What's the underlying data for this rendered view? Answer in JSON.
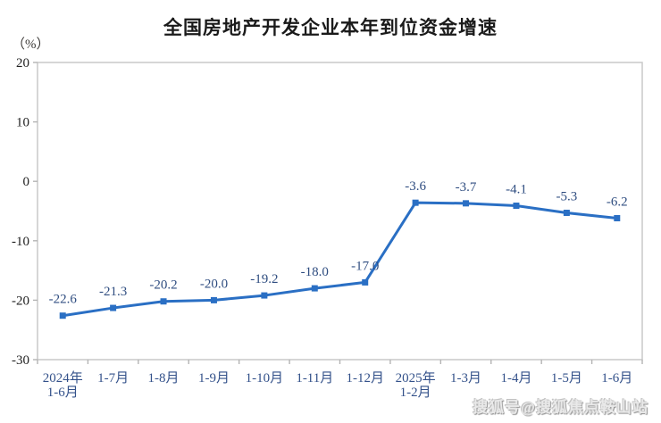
{
  "chart_data": {
    "type": "line",
    "title": "全国房地产开发企业本年到位资金增速",
    "ylabel": "（%）",
    "xlabel": "",
    "categories": [
      "2024年\n1-6月",
      "1-7月",
      "1-8月",
      "1-9月",
      "1-10月",
      "1-11月",
      "1-12月",
      "2025年\n1-2月",
      "1-3月",
      "1-4月",
      "1-5月",
      "1-6月"
    ],
    "values": [
      -22.6,
      -21.3,
      -20.2,
      -20.0,
      -19.2,
      -18.0,
      -17.0,
      -3.6,
      -3.7,
      -4.1,
      -5.3,
      -6.2
    ],
    "data_labels": [
      "-22.6",
      "-21.3",
      "-20.2",
      "-20.0",
      "-19.2",
      "-18.0",
      "-17.0",
      "-3.6",
      "-3.7",
      "-4.1",
      "-5.3",
      "-6.2"
    ],
    "ylim": [
      -30,
      20
    ],
    "yticks": [
      20,
      10,
      0,
      -10,
      -20,
      -30
    ],
    "grid": false,
    "legend": "none",
    "marker": "square",
    "colors": {
      "line": "#2a6fc4",
      "marker": "#2a6fc4",
      "frame": "#c8c8c8",
      "tick": "#b4b4b4",
      "ytick_label": "#1f1f1f",
      "xtick_label": "#33518a",
      "data_label": "#2f4d80",
      "title": "#1a1a1a"
    }
  },
  "watermark": {
    "text": "搜狐号@搜狐焦点鞍山站"
  }
}
